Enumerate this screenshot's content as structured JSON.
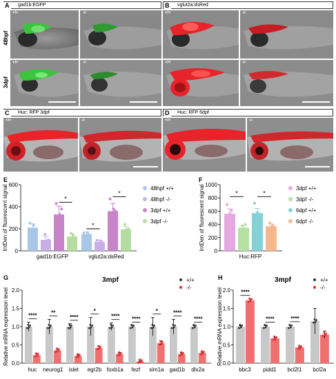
{
  "panels": {
    "A": {
      "letter": "A",
      "header": "gad1b:EGFP"
    },
    "B": {
      "letter": "B",
      "header": "vglut2a:dsRed"
    },
    "C": {
      "letter": "C",
      "header": "Huc: RFP   3dpf"
    },
    "D": {
      "letter": "D",
      "header": "Huc: RFP   6dpf"
    },
    "E": {
      "letter": "E"
    },
    "F": {
      "letter": "F"
    },
    "G": {
      "letter": "G"
    },
    "H": {
      "letter": "H"
    }
  },
  "rows": {
    "r1": "48hpf",
    "r2": "3dpf"
  },
  "genotypes": {
    "wt": "+/+",
    "ko": "-/-"
  },
  "colors": {
    "egfp": "#3cc43c",
    "dsred": "#e8232a",
    "e1": "#a8c6e8",
    "e2": "#c9aee8",
    "e3": "#c884c8",
    "e4": "#b6dca0",
    "f1": "#e6a8e0",
    "f2": "#b4e0a4",
    "f3": "#84d2d6",
    "f4": "#f5b88e",
    "wtbar": "#c8c8c8",
    "kobar": "#f07070"
  },
  "chart_data": [
    {
      "type": "bar",
      "panel": "E",
      "categories": [
        "gad1b:EGFP",
        "vglut2a:dsRed"
      ],
      "ylabel": "IntDen of  fluorescent signal",
      "ylim": [
        0,
        600
      ],
      "yticks": [
        "0",
        "200",
        "400",
        "600"
      ],
      "series": [
        {
          "name": "48hpf +/+",
          "values": [
            210,
            150
          ],
          "errors": [
            35,
            22
          ],
          "points": [
            [
              250,
              170,
              230,
              190
            ],
            [
              160,
              130,
              165,
              145
            ]
          ]
        },
        {
          "name": "48hpf -/-",
          "values": [
            100,
            80
          ],
          "errors": [
            30,
            18
          ],
          "points": [
            [
              70,
              150,
              80,
              100
            ],
            [
              95,
              60,
              90,
              75
            ]
          ]
        },
        {
          "name": "3dpf +/+",
          "values": [
            330,
            360
          ],
          "errors": [
            75,
            70
          ],
          "points": [
            [
              430,
              200,
              330,
              380
            ],
            [
              470,
              220,
              380,
              360
            ]
          ]
        },
        {
          "name": "3dpf -/-",
          "values": [
            130,
            195
          ],
          "errors": [
            25,
            25
          ],
          "points": [
            [
              100,
              160,
              140,
              120
            ],
            [
              160,
              240,
              190,
              200
            ]
          ]
        }
      ],
      "significance": [
        {
          "category": "gad1b:EGFP",
          "between": [
            "3dpf +/+",
            "3dpf -/-"
          ],
          "label": "*",
          "y": 440
        },
        {
          "category": "vglut2a:dsRed",
          "between": [
            "48hpf +/+",
            "48hpf -/-"
          ],
          "label": "*",
          "y": 200
        },
        {
          "category": "vglut2a:dsRed",
          "between": [
            "3dpf +/+",
            "3dpf -/-"
          ],
          "label": "*",
          "y": 490
        }
      ]
    },
    {
      "type": "bar",
      "panel": "F",
      "categories": [
        "Huc:RFP"
      ],
      "ylabel": "IntDen of  fluorescent signal",
      "ylim": [
        0,
        1000
      ],
      "yticks": [
        "0",
        "200",
        "400",
        "600",
        "800",
        "1000"
      ],
      "series": [
        {
          "name": "3dpf +/+",
          "values": [
            560
          ],
          "errors": [
            75
          ],
          "points": [
            [
              700,
              460,
              560,
              610,
              480
            ]
          ]
        },
        {
          "name": "3dpf -/-",
          "values": [
            350
          ],
          "errors": [
            35
          ],
          "points": [
            [
              300,
              380,
              330,
              400
            ]
          ]
        },
        {
          "name": "6dpf +/+",
          "values": [
            570
          ],
          "errors": [
            70
          ],
          "points": [
            [
              720,
              470,
              580,
              500
            ]
          ]
        },
        {
          "name": "6dpf -/-",
          "values": [
            370
          ],
          "errors": [
            35
          ],
          "points": [
            [
              320,
              420,
              360,
              380
            ]
          ]
        }
      ],
      "significance": [
        {
          "between": [
            "3dpf +/+",
            "3dpf -/-"
          ],
          "label": "*",
          "y": 820
        },
        {
          "between": [
            "6dpf +/+",
            "6dpf -/-"
          ],
          "label": "*",
          "y": 820
        }
      ]
    },
    {
      "type": "bar",
      "panel": "G",
      "title": "3mpf",
      "categories": [
        "huc",
        "neurog1",
        "islet",
        "egr2b",
        "foxb1a",
        "fezf",
        "sim1a",
        "gad1b",
        "dlx2a"
      ],
      "ylabel": "Relative mRNA expression level",
      "ylim": [
        0,
        2.0
      ],
      "yticks": [
        "0.0",
        "0.5",
        "1.0",
        "1.5",
        "2.0"
      ],
      "series": [
        {
          "name": "+/+",
          "values": [
            1.0,
            1.0,
            1.0,
            1.0,
            1.0,
            1.0,
            1.0,
            1.0,
            1.0
          ],
          "errors": [
            0.12,
            0.2,
            0.08,
            0.25,
            0.1,
            0.03,
            0.25,
            0.2,
            0.03
          ]
        },
        {
          "name": "-/-",
          "values": [
            0.22,
            0.35,
            0.2,
            0.42,
            0.25,
            0.05,
            0.55,
            0.25,
            0.28
          ],
          "errors": [
            0.03,
            0.03,
            0.02,
            0.05,
            0.02,
            0.01,
            0.06,
            0.02,
            0.02
          ]
        }
      ],
      "significance": [
        "****",
        "**",
        "****",
        "*",
        "****",
        "****",
        "*",
        "****",
        "****"
      ]
    },
    {
      "type": "bar",
      "panel": "H",
      "title": "3mpf",
      "categories": [
        "bbc3",
        "pidd1",
        "bcl2l1",
        "bcl2a"
      ],
      "ylabel": "Relative mRNA expression level",
      "ylim": [
        0,
        2.0
      ],
      "yticks": [
        "0.0",
        "0.5",
        "1.0",
        "1.5",
        "2.0"
      ],
      "series": [
        {
          "name": "+/+",
          "values": [
            1.0,
            1.0,
            1.0,
            1.15
          ],
          "errors": [
            0.02,
            0.03,
            0.04,
            0.35
          ]
        },
        {
          "name": "-/-",
          "values": [
            1.72,
            0.68,
            0.43,
            0.78
          ],
          "errors": [
            0.04,
            0.02,
            0.01,
            0.1
          ]
        }
      ],
      "significance": [
        "****",
        "****",
        "****",
        ""
      ]
    }
  ]
}
